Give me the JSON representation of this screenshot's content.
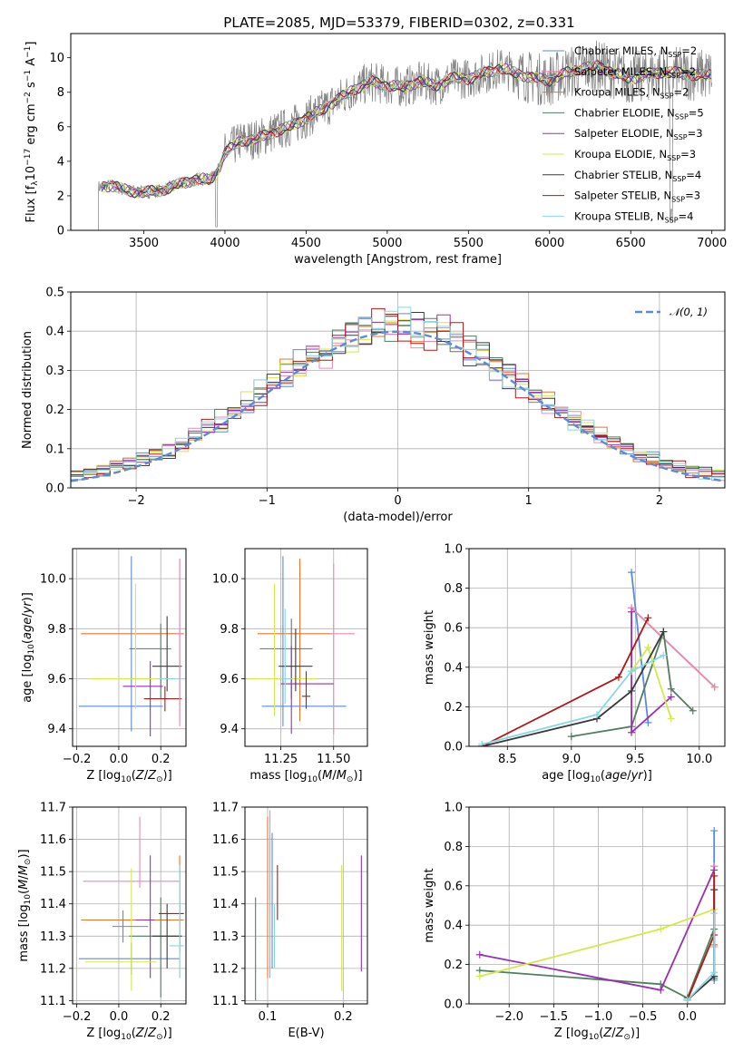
{
  "figure": {
    "title": "PLATE=2085, MJD=53379, FIBERID=0302, z=0.331"
  },
  "colors": {
    "blue": "#5b8bd8",
    "pink": "#e88ab7",
    "orange": "#e8742e",
    "green": "#4f7f5f",
    "purple": "#9a2fb5",
    "yellow": "#d4e84a",
    "dark": "#3a3a3a",
    "red": "#b01818",
    "cyan": "#88d8e0",
    "data_gray": "#808080"
  },
  "chart_data": [
    {
      "id": "spectrum",
      "type": "line",
      "xlabel": "wavelength [Angstrom, rest frame]",
      "ylabel": "Flux [f",
      "xlim": [
        3050,
        7080
      ],
      "ylim": [
        0,
        11.4
      ],
      "xticks": [
        3500,
        4000,
        4500,
        5000,
        5500,
        6000,
        6500,
        7000
      ],
      "yticks": [
        0,
        2,
        4,
        6,
        8,
        10
      ],
      "grid": false,
      "legend_position": "top-right",
      "continuum": {
        "x": [
          3220,
          3300,
          3400,
          3500,
          3600,
          3700,
          3800,
          3850,
          3900,
          3950,
          4000,
          4100,
          4200,
          4300,
          4400,
          4500,
          4600,
          4700,
          4800,
          4900,
          5000,
          5100,
          5200,
          5300,
          5400,
          5500,
          5600,
          5700,
          5800,
          5900,
          6000,
          6100,
          6200,
          6300,
          6400,
          6500,
          6600,
          6700,
          6800,
          6900,
          7000
        ],
        "y": [
          2.5,
          2.6,
          2.3,
          2.2,
          2.3,
          2.6,
          2.9,
          3.0,
          2.9,
          3.3,
          4.5,
          5.2,
          5.3,
          5.7,
          6.0,
          6.5,
          7.0,
          7.6,
          8.2,
          8.6,
          8.4,
          8.3,
          8.6,
          8.4,
          8.8,
          8.8,
          9.1,
          9.4,
          9.1,
          8.8,
          8.7,
          9.1,
          9.4,
          9.5,
          9.1,
          8.8,
          9.0,
          9.2,
          9.1,
          9.0,
          9.0
        ]
      },
      "series": [
        {
          "name": "Chabrier MILES, N",
          "sub": "SSP",
          "suffix": "=2",
          "color": "blue"
        },
        {
          "name": "Salpeter MILES, N",
          "sub": "SSP",
          "suffix": "=2",
          "color": "pink"
        },
        {
          "name": "Kroupa MILES, N",
          "sub": "SSP",
          "suffix": "=2",
          "color": "orange"
        },
        {
          "name": "Chabrier ELODIE, N",
          "sub": "SSP",
          "suffix": "=5",
          "color": "green"
        },
        {
          "name": "Salpeter ELODIE, N",
          "sub": "SSP",
          "suffix": "=3",
          "color": "purple"
        },
        {
          "name": "Kroupa ELODIE, N",
          "sub": "SSP",
          "suffix": "=3",
          "color": "yellow"
        },
        {
          "name": "Chabrier STELIB, N",
          "sub": "SSP",
          "suffix": "=4",
          "color": "dark"
        },
        {
          "name": "Salpeter STELIB, N",
          "sub": "SSP",
          "suffix": "=3",
          "color": "red"
        },
        {
          "name": "Kroupa STELIB, N",
          "sub": "SSP",
          "suffix": "=4",
          "color": "cyan"
        }
      ]
    },
    {
      "id": "residuals",
      "type": "histogram",
      "xlabel": "(data-model)/error",
      "ylabel": "Normed distribution",
      "xlim": [
        -2.5,
        2.5
      ],
      "ylim": [
        0,
        0.5
      ],
      "xticks": [
        -2,
        -1,
        0,
        1,
        2
      ],
      "yticks": [
        0.0,
        0.1,
        0.2,
        0.3,
        0.4,
        0.5
      ],
      "grid": true,
      "legend_position": "top-right",
      "gaussian": {
        "name": "𝒩(0, 1)",
        "mean": 0,
        "sigma": 1,
        "color": "blue"
      },
      "bins": {
        "start": -2.5,
        "width": 0.1,
        "count": 50
      },
      "histogram_colors": [
        "blue",
        "pink",
        "orange",
        "green",
        "purple",
        "yellow",
        "dark",
        "red",
        "cyan"
      ]
    },
    {
      "id": "age-vs-Z",
      "type": "errorbar",
      "xlabel": "Z [log",
      "ylabel": "age  [log",
      "xlim": [
        -0.22,
        0.32
      ],
      "ylim": [
        9.33,
        10.12
      ],
      "xticks": [
        -0.2,
        0.0,
        0.2
      ],
      "yticks": [
        9.4,
        9.6,
        9.8,
        10.0
      ],
      "grid": true,
      "points": [
        {
          "x": 0.06,
          "y": 9.49,
          "xerr": [
            0.25,
            0.15
          ],
          "yerr": [
            0.1,
            0.6
          ],
          "color": "blue"
        },
        {
          "x": 0.29,
          "y": 9.78,
          "xerr": [
            0.47,
            0.02
          ],
          "yerr": [
            0.35,
            0.3
          ],
          "color": "orange"
        },
        {
          "x": 0.2,
          "y": 9.72,
          "xerr": [
            0.15,
            0.05
          ],
          "yerr": [
            0.2,
            0.1
          ],
          "color": "green"
        },
        {
          "x": 0.15,
          "y": 9.57,
          "xerr": [
            0.13,
            0.06
          ],
          "yerr": [
            0.2,
            0.1
          ],
          "color": "purple"
        },
        {
          "x": 0.08,
          "y": 9.6,
          "xerr": [
            0.22,
            0.1
          ],
          "yerr": [
            0.12,
            0.38
          ],
          "color": "yellow"
        },
        {
          "x": 0.23,
          "y": 9.65,
          "xerr": [
            0.07,
            0.07
          ],
          "yerr": [
            0.1,
            0.2
          ],
          "color": "dark"
        },
        {
          "x": 0.22,
          "y": 9.52,
          "xerr": [
            0.1,
            0.08
          ],
          "yerr": [
            0.05,
            0.05
          ],
          "color": "red"
        },
        {
          "x": 0.29,
          "y": 9.6,
          "xerr": [
            0.1,
            0.02
          ],
          "yerr": [
            0.1,
            0.25
          ],
          "color": "cyan"
        },
        {
          "x": 0.29,
          "y": 9.78,
          "xerr": [
            0.02,
            0.02
          ],
          "yerr": [
            0.37,
            0.3
          ],
          "color": "pink"
        }
      ]
    },
    {
      "id": "age-vs-mass",
      "type": "errorbar",
      "xlabel": "mass [log",
      "ylabel": "",
      "xlim": [
        11.08,
        11.66
      ],
      "ylim": [
        9.33,
        10.12
      ],
      "xticks": [
        11.25,
        11.5
      ],
      "yticks": [
        9.4,
        9.6,
        9.8,
        10.0
      ],
      "grid": true,
      "points": [
        {
          "x": 11.26,
          "y": 9.49,
          "xerr": [
            0.1,
            0.3
          ],
          "yerr": [
            0.08,
            0.6
          ],
          "color": "blue"
        },
        {
          "x": 11.34,
          "y": 9.78,
          "xerr": [
            0.2,
            0.15
          ],
          "yerr": [
            0.35,
            0.3
          ],
          "color": "orange"
        },
        {
          "x": 11.5,
          "y": 9.78,
          "xerr": [
            0.02,
            0.1
          ],
          "yerr": [
            0.4,
            0.28
          ],
          "color": "pink"
        },
        {
          "x": 11.3,
          "y": 9.72,
          "xerr": [
            0.15,
            0.1
          ],
          "yerr": [
            0.2,
            0.12
          ],
          "color": "green"
        },
        {
          "x": 11.3,
          "y": 9.58,
          "xerr": [
            0.05,
            0.2
          ],
          "yerr": [
            0.2,
            0.15
          ],
          "color": "purple"
        },
        {
          "x": 11.22,
          "y": 9.6,
          "xerr": [
            0.13,
            0.2
          ],
          "yerr": [
            0.15,
            0.38
          ],
          "color": "yellow"
        },
        {
          "x": 11.32,
          "y": 9.65,
          "xerr": [
            0.08,
            0.08
          ],
          "yerr": [
            0.1,
            0.15
          ],
          "color": "dark"
        },
        {
          "x": 11.37,
          "y": 9.53,
          "xerr": [
            0.02,
            0.02
          ],
          "yerr": [
            0.05,
            0.1
          ],
          "color": "red"
        },
        {
          "x": 11.27,
          "y": 9.6,
          "xerr": [
            0.02,
            0.03
          ],
          "yerr": [
            0.1,
            0.28
          ],
          "color": "cyan"
        }
      ]
    },
    {
      "id": "mass-weight-vs-age",
      "type": "line",
      "xlabel": "age  [log",
      "ylabel": "mass weight",
      "xlim": [
        8.2,
        10.2
      ],
      "ylim": [
        0,
        1.0
      ],
      "xticks": [
        8.5,
        9.0,
        9.5,
        10.0
      ],
      "yticks": [
        0.0,
        0.2,
        0.4,
        0.6,
        0.8,
        1.0
      ],
      "grid": true,
      "series": [
        {
          "color": "blue",
          "x": [
            9.47,
            9.6
          ],
          "y": [
            0.88,
            0.12
          ]
        },
        {
          "color": "orange",
          "x": [
            9.47,
            10.12
          ],
          "y": [
            0.7,
            0.3
          ]
        },
        {
          "color": "pink",
          "x": [
            9.47,
            10.12
          ],
          "y": [
            0.7,
            0.3
          ]
        },
        {
          "color": "green",
          "x": [
            9.0,
            9.47,
            9.72,
            9.78,
            9.95
          ],
          "y": [
            0.05,
            0.1,
            0.58,
            0.29,
            0.18
          ]
        },
        {
          "color": "purple",
          "x": [
            9.47,
            9.47,
            9.78
          ],
          "y": [
            0.68,
            0.07,
            0.25
          ]
        },
        {
          "color": "yellow",
          "x": [
            9.47,
            9.6,
            9.78
          ],
          "y": [
            0.38,
            0.5,
            0.14
          ]
        },
        {
          "color": "dark",
          "x": [
            8.3,
            9.2,
            9.47,
            9.72
          ],
          "y": [
            0.0,
            0.14,
            0.28,
            0.58
          ]
        },
        {
          "color": "red",
          "x": [
            8.3,
            9.37,
            9.6
          ],
          "y": [
            0.0,
            0.35,
            0.65
          ]
        },
        {
          "color": "cyan",
          "x": [
            8.3,
            9.2,
            9.47,
            9.72
          ],
          "y": [
            0.01,
            0.16,
            0.38,
            0.46
          ]
        }
      ]
    },
    {
      "id": "mass-vs-Z",
      "type": "errorbar",
      "xlabel": "Z [log",
      "ylabel": "mass [log",
      "xlim": [
        -0.22,
        0.32
      ],
      "ylim": [
        11.09,
        11.7
      ],
      "xticks": [
        -0.2,
        0.0,
        0.2
      ],
      "yticks": [
        11.1,
        11.2,
        11.3,
        11.4,
        11.5,
        11.6,
        11.7
      ],
      "grid": true,
      "points": [
        {
          "x": 0.06,
          "y": 11.23,
          "xerr": [
            0.25,
            0.23
          ],
          "yerr": [
            0.05,
            0.05
          ],
          "color": "blue"
        },
        {
          "x": 0.29,
          "y": 11.35,
          "xerr": [
            0.47,
            0.02
          ],
          "yerr": [
            0.18,
            0.2
          ],
          "color": "orange"
        },
        {
          "x": 0.1,
          "y": 11.47,
          "xerr": [
            0.27,
            0.19
          ],
          "yerr": [
            0.02,
            0.2
          ],
          "color": "pink"
        },
        {
          "x": 0.2,
          "y": 11.3,
          "xerr": [
            0.15,
            0.1
          ],
          "yerr": [
            0.19,
            0.12
          ],
          "color": "green"
        },
        {
          "x": 0.15,
          "y": 11.35,
          "xerr": [
            0.07,
            0.02
          ],
          "yerr": [
            0.18,
            0.2
          ],
          "color": "purple"
        },
        {
          "x": 0.06,
          "y": 11.22,
          "xerr": [
            0.22,
            0.12
          ],
          "yerr": [
            0.09,
            0.29
          ],
          "color": "yellow"
        },
        {
          "x": 0.23,
          "y": 11.3,
          "xerr": [
            0.07,
            0.07
          ],
          "yerr": [
            0.1,
            0.1
          ],
          "color": "dark"
        },
        {
          "x": 0.29,
          "y": 11.37,
          "xerr": [
            0.1,
            0.02
          ],
          "yerr": [
            0.12,
            0.15
          ],
          "color": "red"
        },
        {
          "x": 0.29,
          "y": 11.27,
          "xerr": [
            0.05,
            0.02
          ],
          "yerr": [
            0.1,
            0.25
          ],
          "color": "cyan"
        },
        {
          "x": 0.02,
          "y": 11.33,
          "xerr": [
            0.05,
            0.12
          ],
          "yerr": [
            0.05,
            0.05
          ],
          "color": "blue"
        }
      ]
    },
    {
      "id": "mass-vs-EBV",
      "type": "errorbar",
      "xlabel": "E(B-V)",
      "ylabel": "",
      "xlim": [
        0.07,
        0.232
      ],
      "ylim": [
        11.09,
        11.7
      ],
      "xticks": [
        0.1,
        0.2
      ],
      "yticks": [
        11.1,
        11.2,
        11.3,
        11.4,
        11.5,
        11.6,
        11.7
      ],
      "grid": true,
      "points": [
        {
          "x": 0.084,
          "y": 11.25,
          "xerr": [
            0,
            0
          ],
          "yerr": [
            0.15,
            0.17
          ],
          "color": "green"
        },
        {
          "x": 0.1,
          "y": 11.38,
          "xerr": [
            0,
            0
          ],
          "yerr": [
            0.21,
            0.29
          ],
          "color": "orange"
        },
        {
          "x": 0.103,
          "y": 11.42,
          "xerr": [
            0,
            0
          ],
          "yerr": [
            0.25,
            0.27
          ],
          "color": "pink"
        },
        {
          "x": 0.106,
          "y": 11.35,
          "xerr": [
            0,
            0
          ],
          "yerr": [
            0.15,
            0.27
          ],
          "color": "blue"
        },
        {
          "x": 0.109,
          "y": 11.3,
          "xerr": [
            0,
            0
          ],
          "yerr": [
            0.1,
            0.1
          ],
          "color": "cyan"
        },
        {
          "x": 0.113,
          "y": 11.44,
          "xerr": [
            0,
            0
          ],
          "yerr": [
            0.09,
            0.08
          ],
          "color": "red"
        },
        {
          "x": 0.198,
          "y": 11.33,
          "xerr": [
            0,
            0
          ],
          "yerr": [
            0.2,
            0.19
          ],
          "color": "yellow"
        },
        {
          "x": 0.224,
          "y": 11.37,
          "xerr": [
            0,
            0
          ],
          "yerr": [
            0.18,
            0.18
          ],
          "color": "purple"
        }
      ]
    },
    {
      "id": "mass-weight-vs-Z",
      "type": "line",
      "xlabel": "Z [log",
      "ylabel": "mass weight",
      "xlim": [
        -2.45,
        0.42
      ],
      "ylim": [
        0,
        1.0
      ],
      "xticks": [
        -2.0,
        -1.5,
        -1.0,
        -0.5,
        0.0
      ],
      "yticks": [
        0.0,
        0.2,
        0.4,
        0.6,
        0.8,
        1.0
      ],
      "grid": true,
      "series": [
        {
          "color": "blue",
          "x": [
            0.3,
            0.3
          ],
          "y": [
            0.88,
            0.12
          ]
        },
        {
          "color": "orange",
          "x": [
            0.3,
            0.3
          ],
          "y": [
            0.7,
            0.3
          ]
        },
        {
          "color": "pink",
          "x": [
            0.3,
            0.3
          ],
          "y": [
            0.7,
            0.29
          ]
        },
        {
          "color": "green",
          "x": [
            -2.33,
            -0.3,
            0.0,
            0.3,
            0.3
          ],
          "y": [
            0.17,
            0.1,
            0.03,
            0.38,
            0.13
          ]
        },
        {
          "color": "purple",
          "x": [
            -2.33,
            -0.3,
            0.3
          ],
          "y": [
            0.25,
            0.07,
            0.68
          ]
        },
        {
          "color": "yellow",
          "x": [
            -2.33,
            -0.3,
            0.3
          ],
          "y": [
            0.14,
            0.38,
            0.48
          ]
        },
        {
          "color": "dark",
          "x": [
            0.0,
            0.3,
            0.3
          ],
          "y": [
            0.02,
            0.14,
            0.58
          ]
        },
        {
          "color": "red",
          "x": [
            0.0,
            0.3,
            0.3
          ],
          "y": [
            0.02,
            0.35,
            0.65
          ]
        },
        {
          "color": "cyan",
          "x": [
            0.0,
            0.3,
            0.3
          ],
          "y": [
            0.02,
            0.16,
            0.46
          ]
        }
      ]
    }
  ]
}
